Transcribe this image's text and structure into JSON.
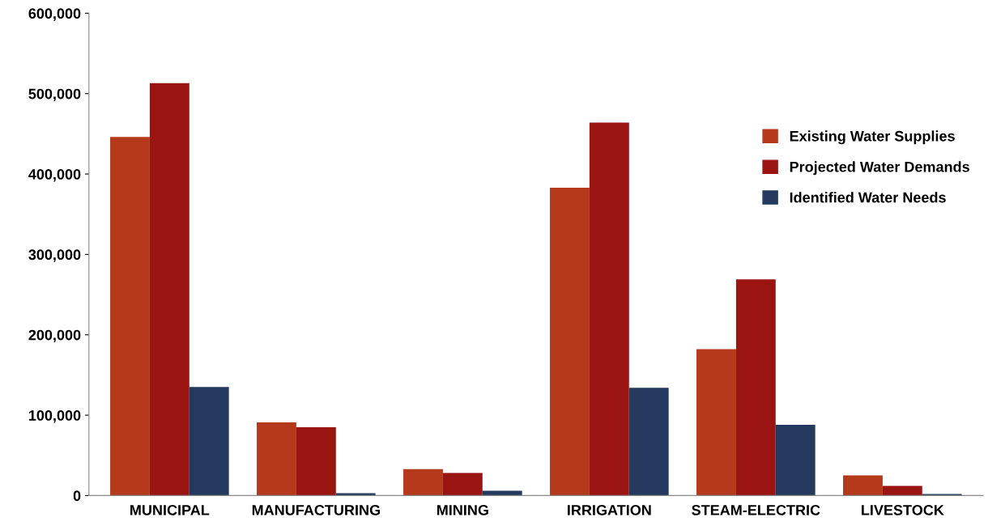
{
  "chart_data": {
    "type": "bar",
    "categories": [
      "MUNICIPAL",
      "MANUFACTURING",
      "MINING",
      "IRRIGATION",
      "STEAM-ELECTRIC",
      "LIVESTOCK"
    ],
    "series": [
      {
        "name": "Existing Water Supplies",
        "color": "#b53a1c",
        "values": [
          446000,
          91000,
          33000,
          383000,
          182000,
          25000
        ]
      },
      {
        "name": "Projected Water Demands",
        "color": "#9a1512",
        "values": [
          513000,
          85000,
          28000,
          464000,
          269000,
          12000
        ]
      },
      {
        "name": "Identified Water Needs",
        "color": "#233a5e",
        "values": [
          135000,
          3000,
          6000,
          134000,
          88000,
          2000
        ]
      }
    ],
    "ylim": [
      0,
      600000
    ],
    "yticks": [
      {
        "value": 0,
        "label": "0"
      },
      {
        "value": 100000,
        "label": "100,000"
      },
      {
        "value": 200000,
        "label": "200,000"
      },
      {
        "value": 300000,
        "label": "300,000"
      },
      {
        "value": 400000,
        "label": "400,000"
      },
      {
        "value": 500000,
        "label": "500,000"
      },
      {
        "value": 600000,
        "label": "600,000"
      }
    ],
    "grid": false,
    "legend": "right"
  }
}
